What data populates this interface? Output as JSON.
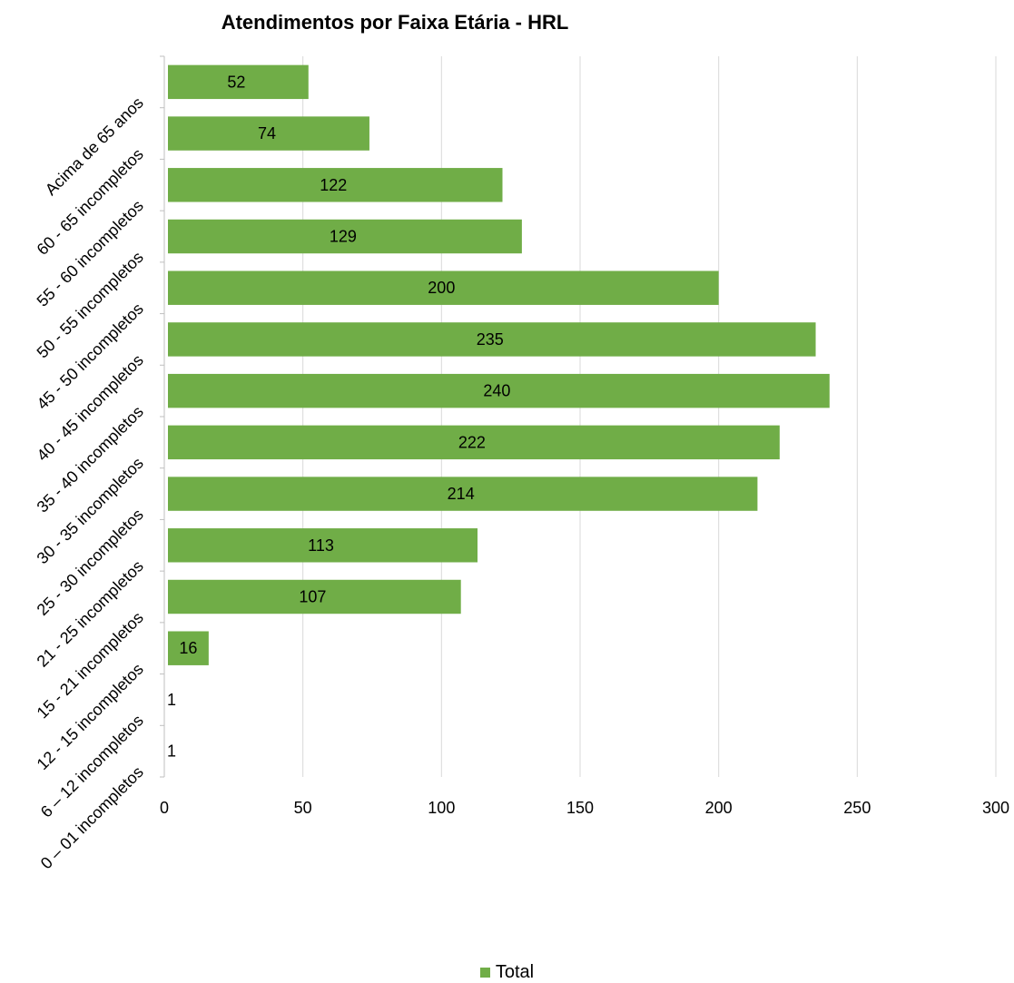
{
  "chart_data": {
    "type": "bar",
    "orientation": "horizontal",
    "title": "Atendimentos por Faixa Etária - HRL",
    "xlabel": "",
    "ylabel": "",
    "xlim": [
      0,
      300
    ],
    "x_ticks": [
      0,
      50,
      100,
      150,
      200,
      250,
      300
    ],
    "grid": true,
    "legend_position": "bottom",
    "bar_color": "#70AD47",
    "categories": [
      "Acima de 65 anos",
      "60 - 65 incompletos",
      "55 - 60 incompletos",
      "50 - 55 incompletos",
      "45 - 50 incompletos",
      "40 - 45 incompletos",
      "35 - 40 incompletos",
      "30 - 35 incompletos",
      "25 - 30 incompletos",
      "21 - 25 incompletos",
      "15 - 21 incompletos",
      "12 - 15 incompletos",
      "6 – 12 incompletos",
      "0 – 01 incompletos"
    ],
    "series": [
      {
        "name": "Total",
        "values": [
          52,
          74,
          122,
          129,
          200,
          235,
          240,
          222,
          214,
          113,
          107,
          16,
          1,
          1
        ]
      }
    ]
  }
}
